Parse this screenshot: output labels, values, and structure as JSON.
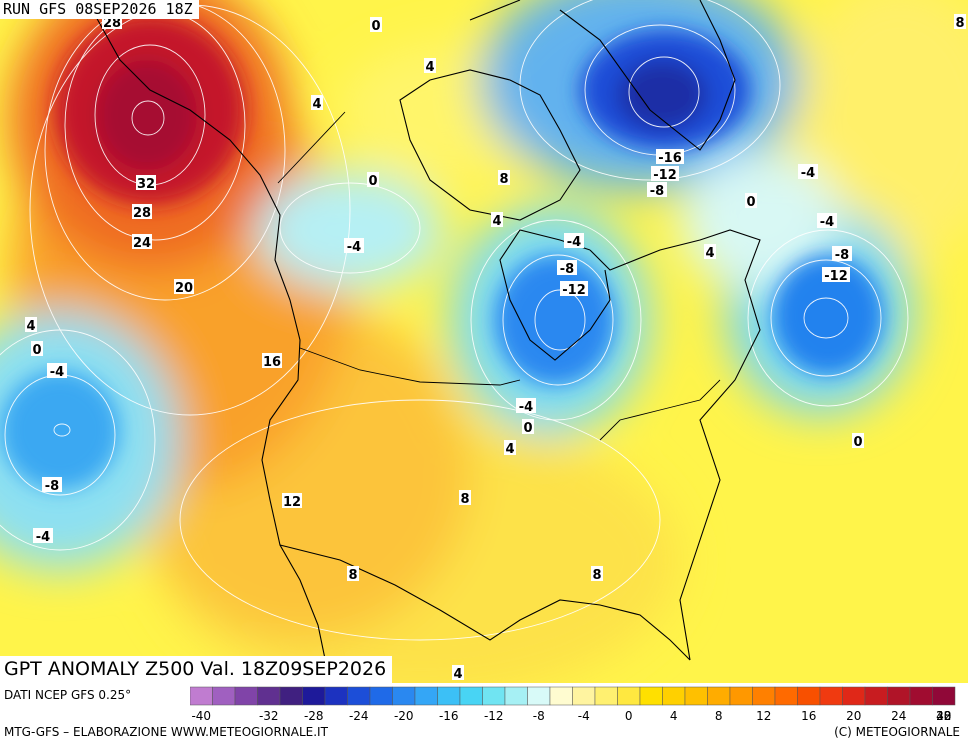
{
  "header": {
    "run_title": "RUN GFS 08SEP2026 18Z",
    "map_title": "GPT ANOMALY Z500 Val. 18Z09SEP2026"
  },
  "footer": {
    "data_source": "DATI NCEP GFS 0.25°",
    "processing": "MTG-GFS – ELABORAZIONE WWW.METEOGIORNALE.IT",
    "copyright": "(C) METEOGIORNALE"
  },
  "colorbar": {
    "tick_labels": [
      "-40",
      "-32",
      "-28",
      "-24",
      "-20",
      "-16",
      "-12",
      "-8",
      "-4",
      "0",
      "4",
      "8",
      "12",
      "16",
      "20",
      "24",
      "28",
      "32",
      "40"
    ],
    "colors": [
      "#c07cd0",
      "#a060c0",
      "#8044a8",
      "#603090",
      "#402080",
      "#1e1a9a",
      "#1c32c0",
      "#1c4ed8",
      "#1f6ae8",
      "#2a88f0",
      "#34a6f6",
      "#3cc0f6",
      "#48d4f4",
      "#70e4f2",
      "#a6f0f4",
      "#d8faf8",
      "#fffcd0",
      "#fff4a0",
      "#fff070",
      "#ffe840",
      "#ffe000",
      "#ffd000",
      "#ffc000",
      "#ffac00",
      "#ff9800",
      "#ff8000",
      "#ff6a00",
      "#f85000",
      "#f03a10",
      "#e02818",
      "#c81c20",
      "#b01428",
      "#a00c30",
      "#900838"
    ]
  },
  "contour_labels": [
    "28",
    "0",
    "4",
    "4",
    "8",
    "32",
    "28",
    "24",
    "0",
    "8",
    "4",
    "-16",
    "-12",
    "-8",
    "-4",
    "0",
    "-4",
    "-4",
    "-8",
    "-12",
    "4",
    "-4",
    "-8",
    "-12",
    "20",
    "4",
    "0",
    "-4",
    "16",
    "-4",
    "0",
    "4",
    "0",
    "-8",
    "12",
    "8",
    "-4",
    "8",
    "8",
    "4"
  ]
}
